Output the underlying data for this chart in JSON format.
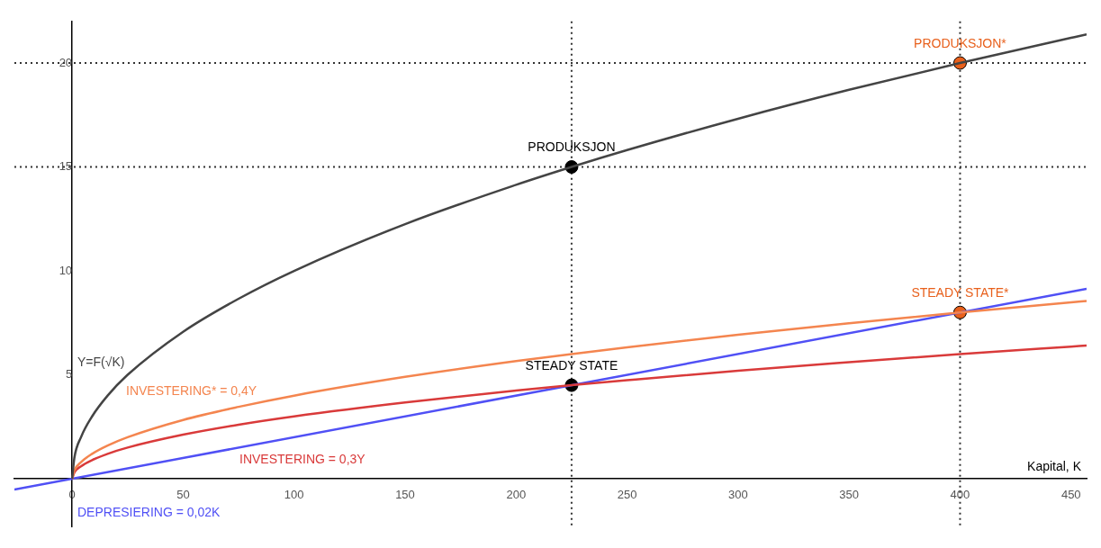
{
  "chart_data": {
    "type": "line",
    "xlabel": "Kapital, K",
    "x": [
      0,
      1,
      4,
      9,
      16,
      25,
      50,
      75,
      100,
      150,
      200,
      225,
      250,
      300,
      350,
      400,
      450,
      457
    ],
    "series": [
      {
        "name": "Y=F(√K)",
        "color": "#444444",
        "values": [
          0,
          1,
          2,
          3,
          4,
          5,
          7.07,
          8.66,
          10,
          12.25,
          14.14,
          15,
          15.81,
          17.32,
          18.71,
          20,
          21.21,
          21.38
        ]
      },
      {
        "name": "INVESTERING* = 0,4Y",
        "color": "#f4854f",
        "values": [
          0,
          0.4,
          0.8,
          1.2,
          1.6,
          2,
          2.83,
          3.46,
          4,
          4.9,
          5.66,
          6,
          6.32,
          6.93,
          7.48,
          8,
          8.49,
          8.55
        ]
      },
      {
        "name": "INVESTERING = 0,3Y",
        "color": "#d93a3a",
        "values": [
          0,
          0.3,
          0.6,
          0.9,
          1.2,
          1.5,
          2.12,
          2.6,
          3,
          3.67,
          4.24,
          4.5,
          4.74,
          5.2,
          5.61,
          6,
          6.36,
          6.41
        ]
      },
      {
        "name": "DEPRESIERING = 0,02K",
        "color": "#5050f5",
        "x": [
          -26,
          457
        ],
        "values": [
          -0.52,
          9.14
        ]
      },
      {
        "type": "scatter",
        "color": "#000000",
        "x": [
          225,
          225
        ],
        "values": [
          15,
          4.5
        ]
      },
      {
        "type": "scatter",
        "color": "#e8601c",
        "x": [
          400,
          400
        ],
        "values": [
          20,
          8
        ]
      }
    ],
    "annotations": [
      "PRODUKSJON",
      "STEADY STATE",
      "PRODUKSJON*",
      "STEADY STATE*"
    ],
    "ref_lines": [
      {
        "axis": "x",
        "value": 225,
        "color": "#333333",
        "line_style": "dotted"
      },
      {
        "axis": "x",
        "value": 400,
        "color": "#333333",
        "line_style": "dotted"
      },
      {
        "axis": "y",
        "value": 15,
        "color": "#333333",
        "line_style": "dotted"
      },
      {
        "axis": "y",
        "value": 20,
        "color": "#333333",
        "line_style": "dotted"
      }
    ],
    "xlim": [
      -26,
      457
    ],
    "ylim": [
      -2.3,
      22
    ],
    "xticks": [
      0,
      50,
      100,
      150,
      200,
      250,
      300,
      350,
      400,
      450
    ],
    "yticks": [
      5,
      10,
      15,
      20
    ],
    "grid": false,
    "legend": false,
    "line_style": "solid"
  }
}
